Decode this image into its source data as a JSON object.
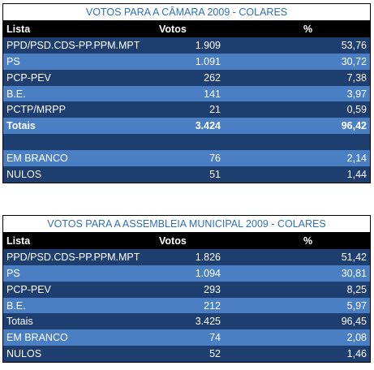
{
  "table1": {
    "title": "VOTOS PARA A CÂMARA 2009 - COLARES",
    "header": {
      "lista": "Lista",
      "votos": "Votos",
      "pct": "%"
    },
    "rows": [
      {
        "lista": "PPD/PSD.CDS-PP.PPM.MPT",
        "votos": "1.909",
        "pct": "53,76"
      },
      {
        "lista": "PS",
        "votos": "1.091",
        "pct": "30,72"
      },
      {
        "lista": "PCP-PEV",
        "votos": "262",
        "pct": "7,38"
      },
      {
        "lista": "B.E.",
        "votos": "141",
        "pct": "3,97"
      },
      {
        "lista": "PCTP/MRPP",
        "votos": "21",
        "pct": "0,59"
      },
      {
        "lista": "Totais",
        "votos": "3.424",
        "pct": "96,42"
      },
      {
        "lista": "",
        "votos": "",
        "pct": ""
      },
      {
        "lista": "EM BRANCO",
        "votos": "76",
        "pct": "2,14"
      },
      {
        "lista": "NULOS",
        "votos": "51",
        "pct": "1,44"
      }
    ]
  },
  "table2": {
    "title": "VOTOS PARA A ASSEMBLEIA MUNICIPAL 2009 - COLARES",
    "header": {
      "lista": "Lista",
      "votos": "Votos",
      "pct": "%"
    },
    "rows": [
      {
        "lista": "PPD/PSD.CDS-PP.PPM.MPT",
        "votos": "1.826",
        "pct": "51,42"
      },
      {
        "lista": "PS",
        "votos": "1.094",
        "pct": "30,81"
      },
      {
        "lista": "PCP-PEV",
        "votos": "293",
        "pct": "8,25"
      },
      {
        "lista": "B.E.",
        "votos": "212",
        "pct": "5,97"
      },
      {
        "lista": "Totais",
        "votos": "3.425",
        "pct": "96,45"
      },
      {
        "lista": "EM BRANCO",
        "votos": "74",
        "pct": "2,08"
      },
      {
        "lista": "NULOS",
        "votos": "52",
        "pct": "1,46"
      }
    ]
  },
  "colors": {
    "title_text": "#2e6fb6",
    "row_dark": "#1f3e70",
    "row_light": "#4a7fc4",
    "header_bg": "#000000"
  }
}
